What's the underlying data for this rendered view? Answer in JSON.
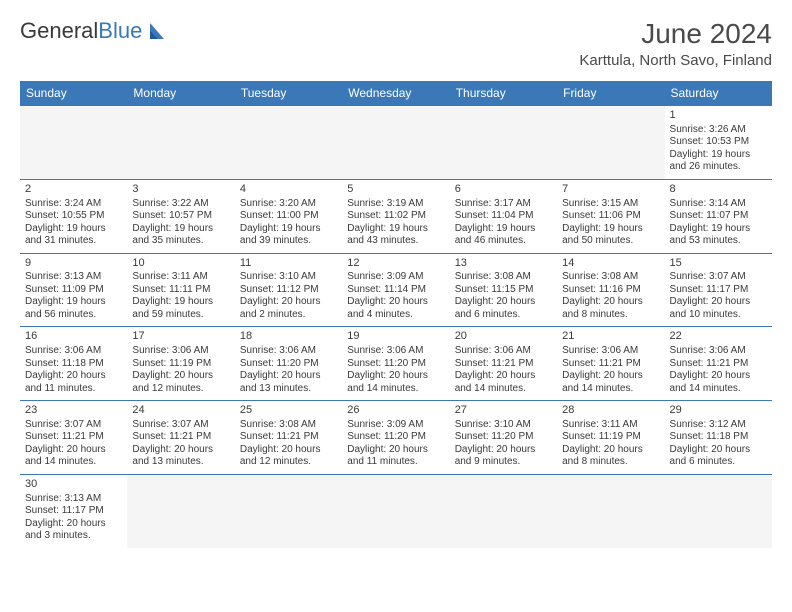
{
  "logo": {
    "general": "General",
    "blue": "Blue"
  },
  "title": "June 2024",
  "location": "Karttula, North Savo, Finland",
  "colors": {
    "header_bg": "#3a78b8",
    "header_fg": "#ffffff",
    "border": "#3a78b8",
    "logo_blue": "#3a78b8"
  },
  "weekdays": [
    "Sunday",
    "Monday",
    "Tuesday",
    "Wednesday",
    "Thursday",
    "Friday",
    "Saturday"
  ],
  "weeks": [
    [
      null,
      null,
      null,
      null,
      null,
      null,
      {
        "d": "1",
        "sr": "3:26 AM",
        "ss": "10:53 PM",
        "dl": "19 hours and 26 minutes."
      }
    ],
    [
      {
        "d": "2",
        "sr": "3:24 AM",
        "ss": "10:55 PM",
        "dl": "19 hours and 31 minutes."
      },
      {
        "d": "3",
        "sr": "3:22 AM",
        "ss": "10:57 PM",
        "dl": "19 hours and 35 minutes."
      },
      {
        "d": "4",
        "sr": "3:20 AM",
        "ss": "11:00 PM",
        "dl": "19 hours and 39 minutes."
      },
      {
        "d": "5",
        "sr": "3:19 AM",
        "ss": "11:02 PM",
        "dl": "19 hours and 43 minutes."
      },
      {
        "d": "6",
        "sr": "3:17 AM",
        "ss": "11:04 PM",
        "dl": "19 hours and 46 minutes."
      },
      {
        "d": "7",
        "sr": "3:15 AM",
        "ss": "11:06 PM",
        "dl": "19 hours and 50 minutes."
      },
      {
        "d": "8",
        "sr": "3:14 AM",
        "ss": "11:07 PM",
        "dl": "19 hours and 53 minutes."
      }
    ],
    [
      {
        "d": "9",
        "sr": "3:13 AM",
        "ss": "11:09 PM",
        "dl": "19 hours and 56 minutes."
      },
      {
        "d": "10",
        "sr": "3:11 AM",
        "ss": "11:11 PM",
        "dl": "19 hours and 59 minutes."
      },
      {
        "d": "11",
        "sr": "3:10 AM",
        "ss": "11:12 PM",
        "dl": "20 hours and 2 minutes."
      },
      {
        "d": "12",
        "sr": "3:09 AM",
        "ss": "11:14 PM",
        "dl": "20 hours and 4 minutes."
      },
      {
        "d": "13",
        "sr": "3:08 AM",
        "ss": "11:15 PM",
        "dl": "20 hours and 6 minutes."
      },
      {
        "d": "14",
        "sr": "3:08 AM",
        "ss": "11:16 PM",
        "dl": "20 hours and 8 minutes."
      },
      {
        "d": "15",
        "sr": "3:07 AM",
        "ss": "11:17 PM",
        "dl": "20 hours and 10 minutes."
      }
    ],
    [
      {
        "d": "16",
        "sr": "3:06 AM",
        "ss": "11:18 PM",
        "dl": "20 hours and 11 minutes."
      },
      {
        "d": "17",
        "sr": "3:06 AM",
        "ss": "11:19 PM",
        "dl": "20 hours and 12 minutes."
      },
      {
        "d": "18",
        "sr": "3:06 AM",
        "ss": "11:20 PM",
        "dl": "20 hours and 13 minutes."
      },
      {
        "d": "19",
        "sr": "3:06 AM",
        "ss": "11:20 PM",
        "dl": "20 hours and 14 minutes."
      },
      {
        "d": "20",
        "sr": "3:06 AM",
        "ss": "11:21 PM",
        "dl": "20 hours and 14 minutes."
      },
      {
        "d": "21",
        "sr": "3:06 AM",
        "ss": "11:21 PM",
        "dl": "20 hours and 14 minutes."
      },
      {
        "d": "22",
        "sr": "3:06 AM",
        "ss": "11:21 PM",
        "dl": "20 hours and 14 minutes."
      }
    ],
    [
      {
        "d": "23",
        "sr": "3:07 AM",
        "ss": "11:21 PM",
        "dl": "20 hours and 14 minutes."
      },
      {
        "d": "24",
        "sr": "3:07 AM",
        "ss": "11:21 PM",
        "dl": "20 hours and 13 minutes."
      },
      {
        "d": "25",
        "sr": "3:08 AM",
        "ss": "11:21 PM",
        "dl": "20 hours and 12 minutes."
      },
      {
        "d": "26",
        "sr": "3:09 AM",
        "ss": "11:20 PM",
        "dl": "20 hours and 11 minutes."
      },
      {
        "d": "27",
        "sr": "3:10 AM",
        "ss": "11:20 PM",
        "dl": "20 hours and 9 minutes."
      },
      {
        "d": "28",
        "sr": "3:11 AM",
        "ss": "11:19 PM",
        "dl": "20 hours and 8 minutes."
      },
      {
        "d": "29",
        "sr": "3:12 AM",
        "ss": "11:18 PM",
        "dl": "20 hours and 6 minutes."
      }
    ],
    [
      {
        "d": "30",
        "sr": "3:13 AM",
        "ss": "11:17 PM",
        "dl": "20 hours and 3 minutes."
      },
      null,
      null,
      null,
      null,
      null,
      null
    ]
  ],
  "labels": {
    "sunrise": "Sunrise:",
    "sunset": "Sunset:",
    "daylight": "Daylight:"
  }
}
